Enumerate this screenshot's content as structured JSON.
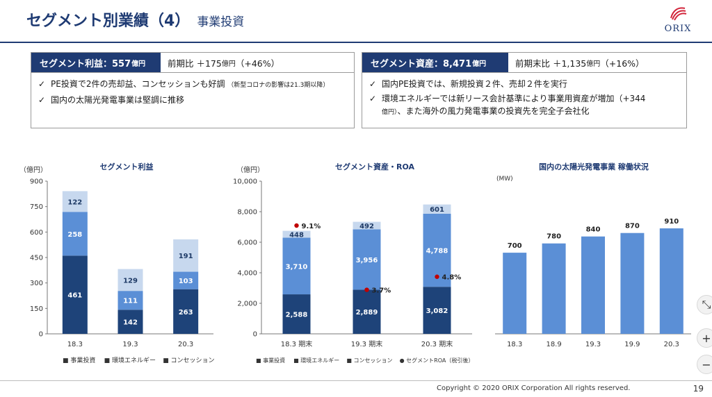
{
  "header": {
    "title": "セグメント別業績（4）",
    "subtitle": "事業投資",
    "logo_text": "ORIX"
  },
  "summary_left": {
    "label": "セグメント利益：557",
    "label_unit": "億円",
    "compare_prefix": "前期比 ＋175",
    "compare_unit": "億円",
    "compare_suffix": "（+46%）",
    "bullets": [
      {
        "text": "PE投資で2件の売却益、コンセッションも好調",
        "note": "（新型コロナの影響は21.3期以降）"
      },
      {
        "text": "国内の太陽光発電事業は堅調に推移",
        "note": ""
      }
    ]
  },
  "summary_right": {
    "label": "セグメント資産：8,471",
    "label_unit": "億円",
    "compare_prefix": "前期末比 ＋1,135",
    "compare_unit": "億円",
    "compare_suffix": "（+16%）",
    "bullets": [
      {
        "text": "国内PE投資では、新規投資２件、売却２件を実行",
        "note": ""
      },
      {
        "text": "環境エネルギーでは新リース会計基準により事業用資産が増加（+344",
        "note": "億円）",
        "tail": "、また海外の風力発電事業の投資先を完全子会社化"
      }
    ]
  },
  "colors": {
    "navy": "#1f3b73",
    "dark": "#1e4379",
    "mid": "#5b8fd6",
    "light": "#c7d8ee",
    "roa": "#c00000"
  },
  "chart_data": [
    {
      "type": "bar",
      "title": "セグメント利益",
      "ylabel": "（億円）",
      "ylim": [
        0,
        900
      ],
      "yticks": [
        "0",
        "150",
        "300",
        "450",
        "600",
        "750",
        "900"
      ],
      "categories": [
        "18.3",
        "19.3",
        "20.3"
      ],
      "series": [
        {
          "name": "事業投資",
          "values": [
            461,
            142,
            263
          ],
          "labels": [
            "461",
            "142",
            "263"
          ]
        },
        {
          "name": "環境エネルギー",
          "values": [
            258,
            111,
            103
          ],
          "labels": [
            "258",
            "111",
            "103"
          ]
        },
        {
          "name": "コンセッション",
          "values": [
            122,
            129,
            191
          ],
          "labels": [
            "122",
            "129",
            "191"
          ]
        }
      ],
      "legend": [
        "■ 事業投資",
        "■ 環境エネルギー",
        "■ コンセッション"
      ]
    },
    {
      "type": "bar",
      "title": "セグメント資産・ROA",
      "ylabel": "（億円）",
      "ylim": [
        0,
        10000
      ],
      "yticks": [
        "0",
        "2,000",
        "4,000",
        "6,000",
        "8,000",
        "10,000"
      ],
      "categories": [
        "18.3 期末",
        "19.3 期末",
        "20.3 期末"
      ],
      "series": [
        {
          "name": "事業投資",
          "values": [
            2588,
            2889,
            3082
          ],
          "labels": [
            "2,588",
            "2,889",
            "3,082"
          ]
        },
        {
          "name": "環境エネルギー",
          "values": [
            3710,
            3956,
            4788
          ],
          "labels": [
            "3,710",
            "3,956",
            "4,788"
          ]
        },
        {
          "name": "コンセッション",
          "values": [
            448,
            492,
            601
          ],
          "labels": [
            "448",
            "492",
            "601"
          ]
        }
      ],
      "roa": {
        "name": "セグメントROA（税引後）",
        "values": [
          9.1,
          3.7,
          4.8
        ],
        "labels": [
          "9.1%",
          "3.7%",
          "4.8%"
        ]
      },
      "legend": [
        "■ 事業投資",
        "■ 環境エネルギー",
        "■ コンセッション",
        "● セグメントROA（税引後）"
      ]
    },
    {
      "type": "bar",
      "title": "国内の太陽光発電事業 稼働状況",
      "ylabel": "(MW)",
      "categories": [
        "18.3",
        "18.9",
        "19.3",
        "19.9",
        "20.3"
      ],
      "values": [
        700,
        780,
        840,
        870,
        910
      ],
      "labels": [
        "700",
        "780",
        "840",
        "870",
        "910"
      ]
    }
  ],
  "controls": {
    "collapse": "⤡",
    "zoom_in": "+",
    "zoom_out": "−"
  },
  "footer": {
    "copyright": "Copyright © 2020 ORIX Corporation  All rights reserved.",
    "page": "19"
  }
}
